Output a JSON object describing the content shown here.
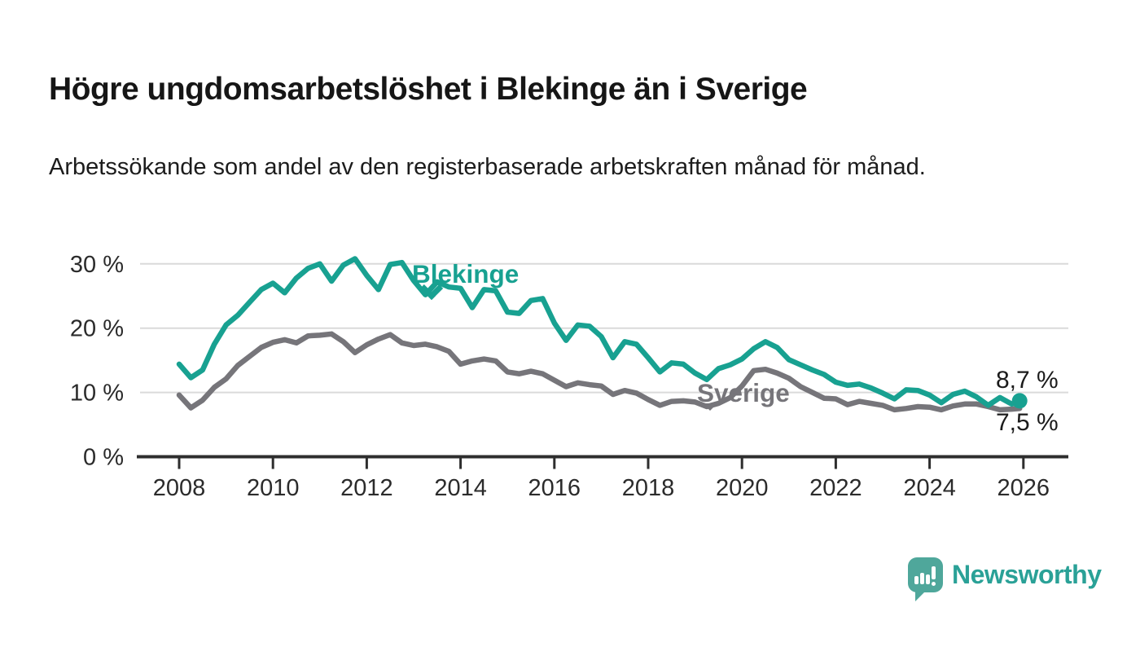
{
  "page": {
    "title": "Högre ungdomsarbetslöshet i Blekinge än i Sverige",
    "subtitle": "Arbetssökande som andel av den registerbaserade arbetskraften månad för månad."
  },
  "branding": {
    "logo_text": "Newsworthy",
    "logo_icon": "speech-bubble-bar-chart-icon",
    "logo_text_color": "#2aa197",
    "logo_icon_color": "#4fa79b"
  },
  "colors": {
    "blekinge": "#18a191",
    "sverige": "#76757a",
    "axis": "#2e2e2e",
    "grid": "#dadada",
    "tick_text": "#2b2b2b",
    "text": "#1b1b1b"
  },
  "chart_data": {
    "type": "line",
    "title": "Högre ungdomsarbetslöshet i Blekinge än i Sverige",
    "xlabel": "",
    "ylabel": "",
    "y_unit": "%",
    "grid": "horizontal",
    "legend": "inline labels next to lines",
    "ylim": [
      0,
      33
    ],
    "xlim": [
      2007.9,
      2026.9
    ],
    "y_ticks": [
      {
        "value": 0,
        "label": "0 %"
      },
      {
        "value": 10,
        "label": "10 %"
      },
      {
        "value": 20,
        "label": "20 %"
      },
      {
        "value": 30,
        "label": "30 %"
      }
    ],
    "x_ticks": [
      {
        "value": 2008,
        "label": "2008"
      },
      {
        "value": 2010,
        "label": "2010"
      },
      {
        "value": 2012,
        "label": "2012"
      },
      {
        "value": 2014,
        "label": "2014"
      },
      {
        "value": 2016,
        "label": "2016"
      },
      {
        "value": 2018,
        "label": "2018"
      },
      {
        "value": 2020,
        "label": "2020"
      },
      {
        "value": 2022,
        "label": "2022"
      },
      {
        "value": 2024,
        "label": "2024"
      },
      {
        "value": 2026,
        "label": "2026"
      }
    ],
    "x": [
      2008,
      2008.25,
      2008.5,
      2008.75,
      2009,
      2009.25,
      2009.5,
      2009.75,
      2010,
      2010.25,
      2010.5,
      2010.75,
      2011,
      2011.25,
      2011.5,
      2011.75,
      2012,
      2012.25,
      2012.5,
      2012.75,
      2013,
      2013.25,
      2013.5,
      2013.75,
      2014,
      2014.25,
      2014.5,
      2014.75,
      2015,
      2015.25,
      2015.5,
      2015.75,
      2016,
      2016.25,
      2016.5,
      2016.75,
      2017,
      2017.25,
      2017.5,
      2017.75,
      2018,
      2018.25,
      2018.5,
      2018.75,
      2019,
      2019.25,
      2019.5,
      2019.75,
      2020,
      2020.25,
      2020.5,
      2020.75,
      2021,
      2021.25,
      2021.5,
      2021.75,
      2022,
      2022.25,
      2022.5,
      2022.75,
      2023,
      2023.25,
      2023.5,
      2023.75,
      2024,
      2024.25,
      2024.5,
      2024.75,
      2025,
      2025.25,
      2025.5,
      2025.75,
      2025.92
    ],
    "series": [
      {
        "name": "Blekinge",
        "color": "#18a191",
        "end_label": "8,7 %",
        "end_value": 8.7,
        "values": [
          14.4,
          12.3,
          13.5,
          17.5,
          20.5,
          22.0,
          24.0,
          26.0,
          27.0,
          25.5,
          27.8,
          29.3,
          30.0,
          27.3,
          29.8,
          30.8,
          28.2,
          26.0,
          29.9,
          30.2,
          27.4,
          25.2,
          27.2,
          26.4,
          26.2,
          23.2,
          26.0,
          25.8,
          22.5,
          22.3,
          24.3,
          24.6,
          20.8,
          18.1,
          20.5,
          20.3,
          18.7,
          15.4,
          17.9,
          17.5,
          15.4,
          13.2,
          14.6,
          14.4,
          13.0,
          12.0,
          13.7,
          14.3,
          15.2,
          16.8,
          17.9,
          17.0,
          15.1,
          14.3,
          13.5,
          12.8,
          11.6,
          11.1,
          11.3,
          10.7,
          9.9,
          9.0,
          10.4,
          10.3,
          9.6,
          8.4,
          9.7,
          10.2,
          9.3,
          8.0,
          9.2,
          8.2,
          8.7
        ]
      },
      {
        "name": "Sverige",
        "color": "#76757a",
        "end_label": "7,5 %",
        "end_value": 7.5,
        "values": [
          9.6,
          7.6,
          8.8,
          10.8,
          12.1,
          14.2,
          15.6,
          17.0,
          17.8,
          18.2,
          17.7,
          18.8,
          18.9,
          19.1,
          17.9,
          16.2,
          17.4,
          18.3,
          19.0,
          17.7,
          17.3,
          17.5,
          17.1,
          16.4,
          14.4,
          14.9,
          15.2,
          14.9,
          13.2,
          12.9,
          13.3,
          12.9,
          11.9,
          10.9,
          11.5,
          11.2,
          11.0,
          9.7,
          10.3,
          9.9,
          8.9,
          8.0,
          8.6,
          8.7,
          8.5,
          7.8,
          8.3,
          9.2,
          11.0,
          13.4,
          13.6,
          13.0,
          12.2,
          10.9,
          10.0,
          9.1,
          9.0,
          8.1,
          8.6,
          8.3,
          8.0,
          7.3,
          7.5,
          7.8,
          7.7,
          7.3,
          7.9,
          8.2,
          8.2,
          7.8,
          7.3,
          7.4,
          7.5
        ]
      }
    ]
  }
}
